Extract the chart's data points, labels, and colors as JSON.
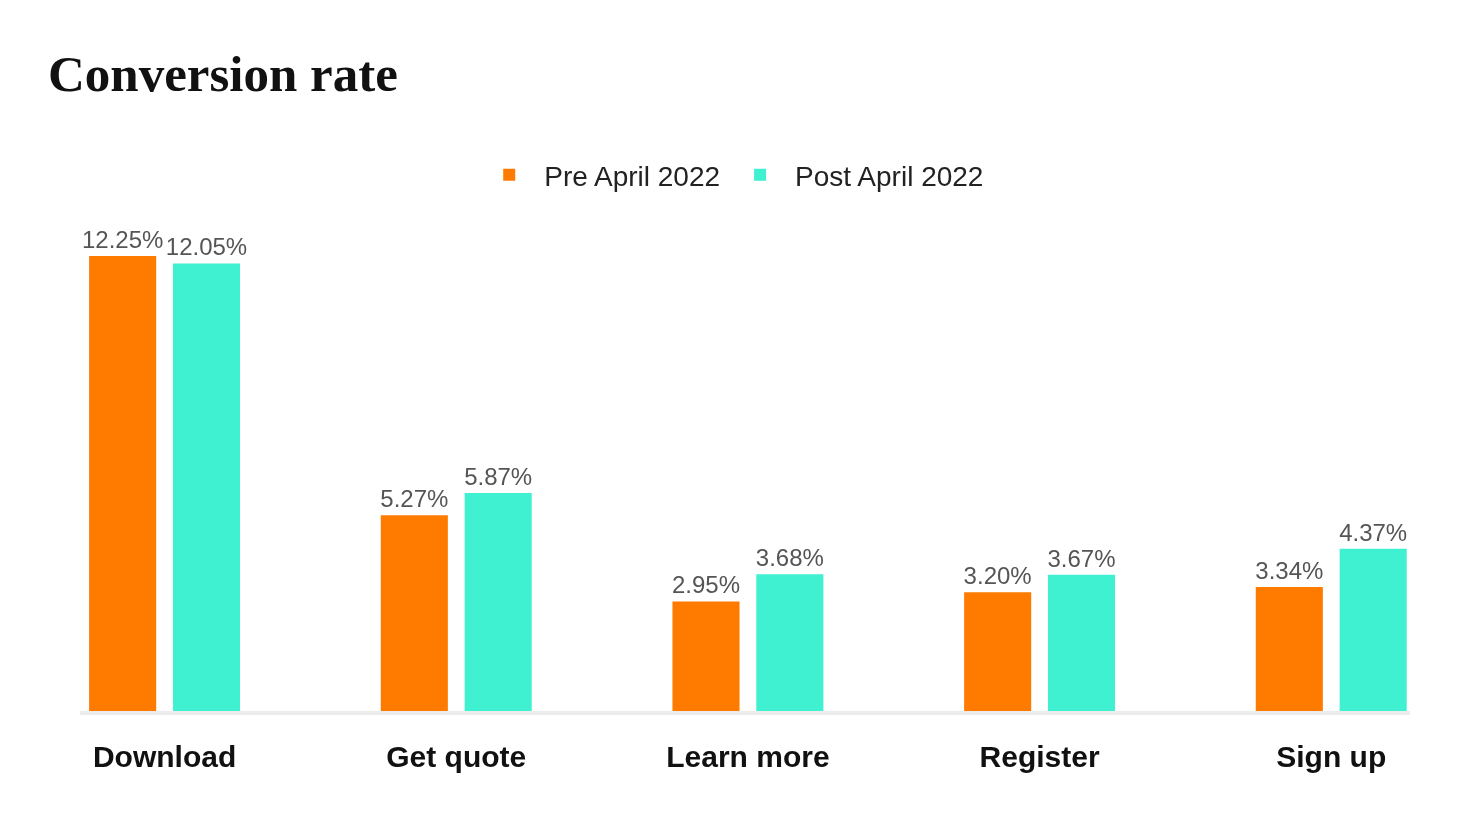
{
  "chart_data": {
    "type": "bar",
    "title": "Conversion rate",
    "categories": [
      "Download",
      "Get quote",
      "Learn more",
      "Register",
      "Sign up"
    ],
    "series": [
      {
        "name": "Pre April 2022",
        "color": "#ff7b00",
        "values": [
          12.25,
          5.27,
          2.95,
          3.2,
          3.34
        ],
        "value_labels": [
          "12.25%",
          "5.27%",
          "2.95%",
          "3.20%",
          "3.34%"
        ]
      },
      {
        "name": "Post April 2022",
        "color": "#3ff0d1",
        "values": [
          12.05,
          5.87,
          3.68,
          3.67,
          4.37
        ],
        "value_labels": [
          "12.05%",
          "5.87%",
          "3.68%",
          "3.67%",
          "4.37%"
        ]
      }
    ],
    "tick_labels": "x",
    "legend": "top"
  }
}
